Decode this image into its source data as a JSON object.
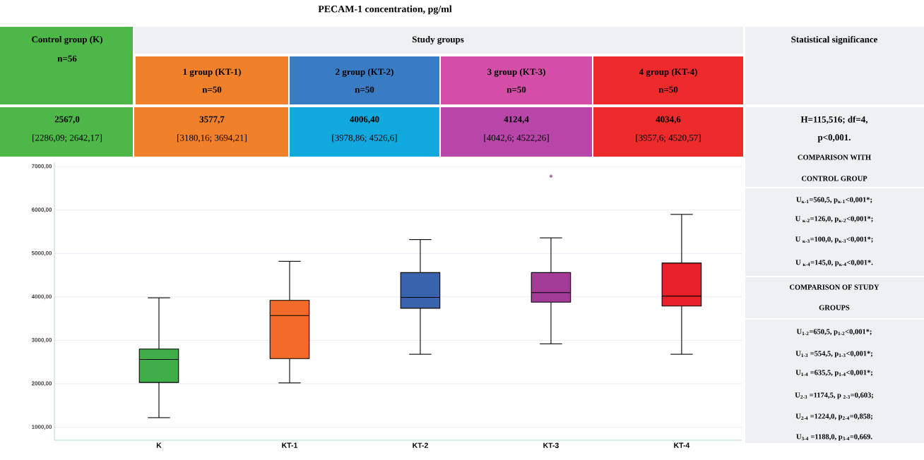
{
  "chart_data": {
    "type": "box",
    "title": "PECAM-1 concentration, pg/ml",
    "categories": [
      "K",
      "KT-1",
      "KT-2",
      "KT-3",
      "KT-4"
    ],
    "boxes": [
      {
        "low": 1220,
        "q1": 2030,
        "median": 2560,
        "q3": 2800,
        "high": 3980
      },
      {
        "low": 2020,
        "q1": 2580,
        "median": 3570,
        "q3": 3920,
        "high": 4820
      },
      {
        "low": 2680,
        "q1": 3740,
        "median": 3990,
        "q3": 4560,
        "high": 5320
      },
      {
        "low": 2920,
        "q1": 3880,
        "median": 4100,
        "q3": 4560,
        "high": 5360,
        "outliers": [
          6780
        ]
      },
      {
        "low": 2680,
        "q1": 3790,
        "median": 4020,
        "q3": 4780,
        "high": 5900
      }
    ],
    "colors": [
      "#3fae49",
      "#f26b2a",
      "#3a63ad",
      "#a23c97",
      "#e8202a"
    ],
    "ylim": [
      700,
      7100
    ],
    "yticks": [
      {
        "value": 1000,
        "label": "1000,00"
      },
      {
        "value": 2000,
        "label": "2000,00"
      },
      {
        "value": 3000,
        "label": "3000,00"
      },
      {
        "value": 4000,
        "label": "4000,00"
      },
      {
        "value": 5000,
        "label": "5000,00"
      },
      {
        "value": 6000,
        "label": "6000,00"
      },
      {
        "value": 7000,
        "label": "7000,00"
      }
    ],
    "grid": "y",
    "annotations": [
      "Control group (K)",
      "n=56",
      "Study groups",
      "Statistical significance",
      "1 group (KT-1)",
      "n=50",
      "2 group (KT-2)",
      "n=50",
      "3 group (KT-3)",
      "n=50",
      "4 group (KT-4)",
      "n=50",
      "2567,0",
      "[2286,09; 2642,17]",
      "3577,7",
      "[3180,16; 3694,21]",
      "4006,40",
      "[3978,86; 4526,6]",
      "4124,4",
      "[4042,6; 4522,26]",
      "4034,6",
      "[3957,6; 4520,57]",
      "H=115,516; df=4,",
      "p<0,001.",
      "COMPARISON WITH",
      "CONTROL GROUP",
      "U$_{к-1}$=560,5, p$_{к-1}$<0,001*;",
      "U $_{к-2}$=126,0, p$_{к-2}$<0,001*;",
      "U $_{к-3}$=100,0, p$_{к-3}$<0,001*;",
      "U $_{к-4}$=145,0, p$_{к-4}$<0,001*.",
      "COMPARISON OF STUDY",
      "GROUPS",
      "U$_{1-2}$=650,5, p$_{1-2}$<0,001*;",
      "U$_{1-3}$ =554,5, p$_{1-3}$<0,001*;",
      "U$_{1-4}$ =635,5, p$_{1-4}$<0,001*;",
      "U$_{2-3}$ =1174,5, p $_{2-3}$=0,603;",
      "U$_{2-4}$ =1224,0, p$_{2-4}$=0,858;",
      "U$_{3-4}$ =1188,0, p$_{3-4}$=0,669."
    ]
  }
}
